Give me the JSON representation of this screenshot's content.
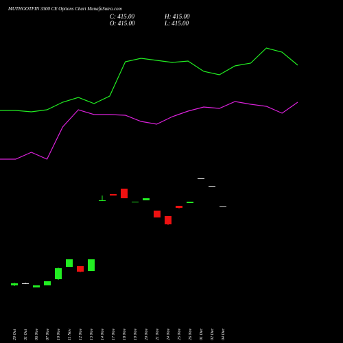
{
  "chart_data": {
    "type": "candlestick",
    "title": "MUTHOOTFIN 3300 CE Options Chart MunafaSutra.com",
    "ohlc_labels": [
      "C: 415.00",
      "H: 415.00",
      "O: 415.00",
      "L: 415.00"
    ],
    "categories": [
      "29 Oct",
      "31 Oct",
      "06 Nov",
      "07 Nov",
      "10 Nov",
      "11 Nov",
      "12 Nov",
      "13 Nov",
      "14 Nov",
      "17 Nov",
      "18 Nov",
      "19 Nov",
      "20 Nov",
      "21 Nov",
      "24 Nov",
      "25 Nov",
      "26 Nov",
      "01 Dec",
      "02 Dec",
      "04 Dec"
    ],
    "open": [
      300,
      303,
      297,
      300,
      309,
      327,
      328,
      321,
      423.5,
      433,
      441,
      421.5,
      424,
      409,
      401,
      416,
      420,
      456,
      445,
      415
    ],
    "high": [
      304,
      304,
      300,
      306,
      326,
      338,
      328,
      338,
      431,
      433,
      441,
      422,
      427,
      409,
      401,
      416,
      422,
      456,
      445,
      415
    ],
    "low": [
      299,
      303,
      297,
      300,
      308,
      327,
      319,
      321,
      423,
      431,
      427,
      421,
      424,
      399,
      388,
      412,
      420,
      456,
      445,
      415
    ],
    "close": [
      303,
      303,
      300,
      306,
      325,
      338,
      320,
      338,
      424,
      431,
      427,
      422,
      427,
      399,
      389,
      413,
      422,
      456,
      445,
      415
    ],
    "up_color": "#22ee22",
    "down_color": "#ee1111",
    "flat_color": "#dddddd",
    "ylim": [
      285,
      465
    ],
    "y2lim": [
      0,
      300
    ],
    "series": [
      {
        "color": "#22ee22",
        "axis": "y2",
        "values": [
          139,
          139,
          137,
          140,
          151,
          158,
          149,
          160,
          210,
          215,
          212,
          209,
          211,
          196,
          191,
          204,
          208,
          230,
          224,
          205
        ]
      },
      {
        "color": "#dd22dd",
        "axis": "y2",
        "values": [
          68,
          68,
          78,
          68,
          115,
          140,
          133,
          133,
          132,
          123,
          119,
          130,
          138,
          144,
          142,
          152,
          148,
          145,
          135,
          151
        ]
      }
    ]
  }
}
